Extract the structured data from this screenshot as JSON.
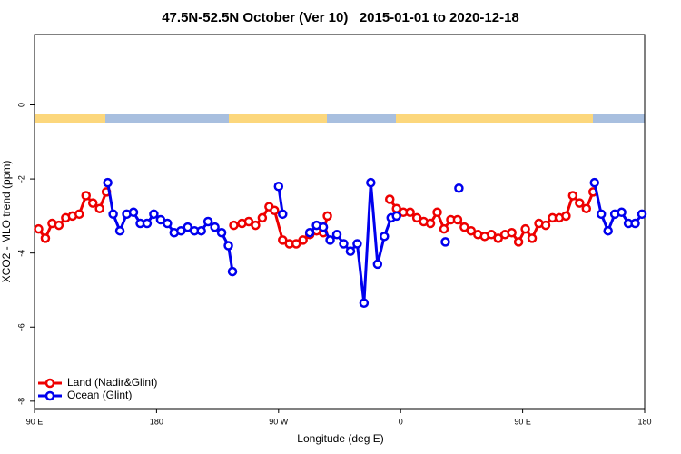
{
  "chart_data": {
    "type": "line",
    "title": "47.5N-52.5N October (Ver 10)   2015-01-01 to 2020-12-18",
    "x_label": "Longitude (deg E)",
    "y_label": "XCO2 - MLO trend (ppm)",
    "xlim": [
      90,
      540
    ],
    "ylim": [
      -8.2,
      1.9
    ],
    "xticks": [
      {
        "value": 90,
        "label": "90 E"
      },
      180,
      {
        "value": 270,
        "label": "90 W"
      },
      {
        "value": 360,
        "label": "0"
      },
      {
        "value": 450,
        "label": "90 E"
      },
      {
        "value": 540,
        "label": "180"
      }
    ],
    "yticks": [
      0,
      -2,
      -4,
      -6,
      -8
    ],
    "legend": "bottom-left",
    "series": [
      {
        "name": "Land (Nadir&Glint)",
        "color": "#ee0000",
        "x": [
          93,
          98,
          103,
          108,
          113,
          118,
          123,
          128,
          133,
          138,
          143,
          null,
          237,
          243,
          248,
          253,
          258,
          263,
          267,
          273,
          278,
          283,
          288,
          293,
          298,
          303,
          306,
          null,
          352,
          357,
          362,
          367,
          372,
          377,
          382,
          387,
          392,
          397,
          402,
          407,
          412,
          417,
          422,
          427,
          432,
          437,
          442,
          447,
          452,
          457,
          462,
          467,
          472,
          477,
          482,
          487,
          492,
          497,
          502
        ],
        "values": [
          -3.35,
          -3.6,
          -3.2,
          -3.25,
          -3.05,
          -3.0,
          -2.95,
          -2.45,
          -2.65,
          -2.8,
          -2.35,
          null,
          -3.25,
          -3.2,
          -3.15,
          -3.25,
          -3.05,
          -2.75,
          -2.85,
          -3.65,
          -3.75,
          -3.75,
          -3.65,
          -3.5,
          -3.4,
          -3.45,
          -3.0,
          null,
          -2.55,
          -2.8,
          -2.9,
          -2.9,
          -3.05,
          -3.15,
          -3.2,
          -2.9,
          -3.35,
          -3.1,
          -3.1,
          -3.3,
          -3.4,
          -3.5,
          -3.55,
          -3.5,
          -3.6,
          -3.5,
          -3.45,
          -3.7,
          -3.35,
          -3.6,
          -3.2,
          -3.25,
          -3.05,
          -3.05,
          -3.0,
          -2.45,
          -2.65,
          -2.8,
          -2.35
        ]
      },
      {
        "name": "Ocean (Glint)",
        "color": "#0000ee",
        "x": [
          144,
          148,
          153,
          158,
          163,
          168,
          173,
          178,
          183,
          188,
          193,
          198,
          203,
          208,
          213,
          218,
          223,
          228,
          233,
          236,
          null,
          270,
          273,
          null,
          293,
          298,
          303,
          308,
          313,
          318,
          323,
          328,
          333,
          338,
          343,
          348,
          353,
          357,
          null,
          393,
          null,
          403,
          null,
          503,
          508,
          513,
          518,
          523,
          528,
          533,
          538
        ],
        "values": [
          -2.1,
          -2.95,
          -3.4,
          -2.95,
          -2.9,
          -3.2,
          -3.2,
          -2.95,
          -3.1,
          -3.2,
          -3.45,
          -3.4,
          -3.3,
          -3.4,
          -3.4,
          -3.15,
          -3.3,
          -3.45,
          -3.8,
          -4.5,
          null,
          -2.2,
          -2.95,
          null,
          -3.45,
          -3.25,
          -3.3,
          -3.65,
          -3.5,
          -3.75,
          -3.95,
          -3.75,
          -5.35,
          -2.1,
          -4.3,
          -3.55,
          -3.05,
          -3.0,
          null,
          -3.7,
          null,
          -2.25,
          null,
          -2.1,
          -2.95,
          -3.4,
          -2.95,
          -2.9,
          -3.2,
          -3.2,
          -2.95
        ]
      }
    ]
  }
}
